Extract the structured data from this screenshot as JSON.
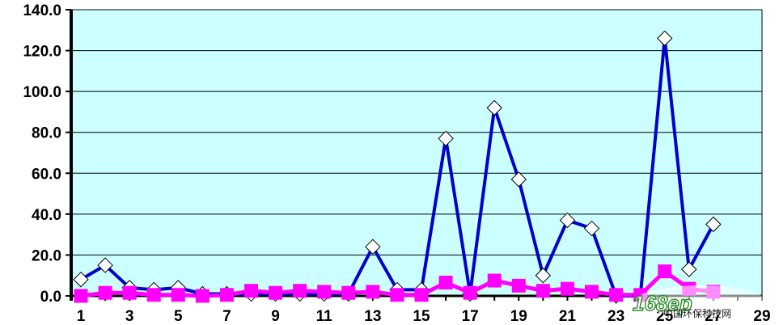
{
  "chart_data": {
    "type": "line",
    "title": "",
    "xlabel": "",
    "ylabel": "",
    "x": [
      1,
      2,
      3,
      4,
      5,
      6,
      7,
      8,
      9,
      10,
      11,
      12,
      13,
      14,
      15,
      16,
      17,
      18,
      19,
      20,
      21,
      22,
      23,
      24,
      25,
      26,
      27,
      28
    ],
    "x_tick_labels": [
      "1",
      "3",
      "5",
      "7",
      "9",
      "11",
      "13",
      "15",
      "17",
      "19",
      "21",
      "23",
      "25",
      "27",
      "29"
    ],
    "y_tick_labels": [
      "0.0",
      "20.0",
      "40.0",
      "60.0",
      "80.0",
      "100.0",
      "120.0",
      "140.0"
    ],
    "xlim": [
      1,
      29
    ],
    "ylim": [
      0,
      140
    ],
    "grid": "horizontal",
    "legend": "none",
    "series": [
      {
        "color": "#0000cc",
        "marker": "diamond",
        "values": [
          8,
          15,
          4,
          3,
          4,
          1,
          1,
          1,
          1,
          1,
          1,
          1,
          24,
          3,
          3,
          77,
          1,
          92,
          57,
          10,
          37,
          33,
          0,
          0,
          126,
          13,
          35,
          null
        ]
      },
      {
        "color": "#ff00ff",
        "marker": "square",
        "values": [
          0,
          1.5,
          1.5,
          0.5,
          0.5,
          0,
          0.5,
          2.5,
          1.5,
          2.5,
          2,
          1.5,
          2,
          0.5,
          0.5,
          6.5,
          1.5,
          7.5,
          5,
          2.5,
          3.5,
          2,
          0.5,
          0.5,
          12,
          3.5,
          2,
          null
        ]
      }
    ],
    "plot_background": "#ccffff"
  },
  "watermark": {
    "logo_text": "168ep",
    "site_text": "中国环保科技网",
    "logo_color": "#2a8a2a"
  }
}
